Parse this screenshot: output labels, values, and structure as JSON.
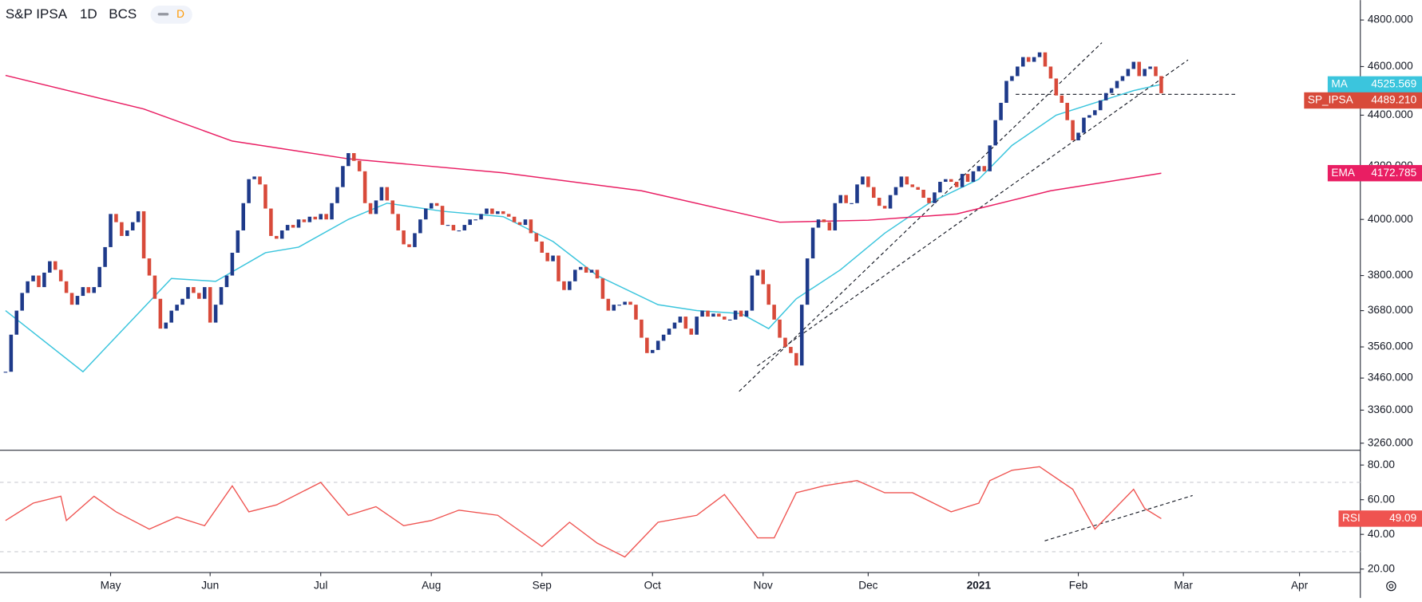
{
  "header": {
    "symbol": "S&P IPSA",
    "interval": "1D",
    "exchange": "BCS",
    "badge": "D"
  },
  "chart_data": [
    {
      "type": "candlestick",
      "name": "SP_IPSA",
      "value_label": "4489.210",
      "up_color": "#1e3a8a",
      "down_color": "#d84a3a",
      "log_scale": true,
      "xlim": [
        -1,
        245
      ],
      "xticks": [
        {
          "value": 19,
          "label": "May"
        },
        {
          "value": 37,
          "label": "Jun"
        },
        {
          "value": 57,
          "label": "Jul"
        },
        {
          "value": 77,
          "label": "Aug"
        },
        {
          "value": 97,
          "label": "Sep"
        },
        {
          "value": 117,
          "label": "Oct"
        },
        {
          "value": 137,
          "label": "Nov"
        },
        {
          "value": 156,
          "label": "Dec"
        },
        {
          "value": 176,
          "label": "2021"
        },
        {
          "value": 194,
          "label": "Feb"
        },
        {
          "value": 213,
          "label": "Mar"
        },
        {
          "value": 234,
          "label": "Apr"
        }
      ],
      "ylim": [
        3239,
        4888
      ],
      "yticks": [
        {
          "value": 3260,
          "label": "3260.000"
        },
        {
          "value": 3360,
          "label": "3360.000"
        },
        {
          "value": 3460,
          "label": "3460.000"
        },
        {
          "value": 3560,
          "label": "3560.000"
        },
        {
          "value": 3680,
          "label": "3680.000"
        },
        {
          "value": 3800,
          "label": "3800.000"
        },
        {
          "value": 4000,
          "label": "4000.000"
        },
        {
          "value": 4200,
          "label": "4200.000"
        },
        {
          "value": 4400,
          "label": "4400.000"
        },
        {
          "value": 4600,
          "label": "4600.000"
        },
        {
          "value": 4800,
          "label": "4800.000"
        }
      ],
      "values": [
        3480,
        3600,
        3680,
        3740,
        3780,
        3800,
        3760,
        3810,
        3850,
        3820,
        3780,
        3740,
        3700,
        3730,
        3760,
        3740,
        3760,
        3830,
        3900,
        4020,
        3990,
        3940,
        3960,
        3990,
        4030,
        3860,
        3800,
        3720,
        3620,
        3640,
        3680,
        3700,
        3720,
        3760,
        3740,
        3720,
        3760,
        3640,
        3700,
        3760,
        3800,
        3880,
        3960,
        4060,
        4150,
        4160,
        4130,
        4040,
        3940,
        3930,
        3960,
        3980,
        3970,
        4000,
        3990,
        4010,
        4000,
        4020,
        4000,
        4060,
        4120,
        4200,
        4250,
        4220,
        4180,
        4060,
        4020,
        4070,
        4120,
        4070,
        4020,
        3960,
        3910,
        3900,
        3950,
        4000,
        4040,
        4060,
        4050,
        3980,
        3980,
        3960,
        3960,
        3980,
        4000,
        4000,
        4020,
        4040,
        4020,
        4030,
        4020,
        4010,
        3990,
        3980,
        4000,
        3950,
        3920,
        3880,
        3850,
        3870,
        3780,
        3750,
        3780,
        3820,
        3830,
        3810,
        3820,
        3790,
        3720,
        3680,
        3700,
        3700,
        3710,
        3700,
        3650,
        3590,
        3540,
        3550,
        3580,
        3600,
        3620,
        3640,
        3660,
        3620,
        3600,
        3660,
        3680,
        3660,
        3670,
        3660,
        3650,
        3650,
        3680,
        3660,
        3680,
        3800,
        3820,
        3770,
        3700,
        3650,
        3590,
        3560,
        3540,
        3500,
        3700,
        3860,
        3970,
        4000,
        3990,
        3960,
        4060,
        4090,
        4060,
        4060,
        4130,
        4160,
        4120,
        4080,
        4050,
        4040,
        4090,
        4120,
        4160,
        4130,
        4120,
        4110,
        4080,
        4060,
        4100,
        4140,
        4150,
        4140,
        4120,
        4170,
        4140,
        4180,
        4200,
        4180,
        4280,
        4380,
        4450,
        4540,
        4560,
        4600,
        4640,
        4620,
        4640,
        4660,
        4600,
        4550,
        4480,
        4450,
        4380,
        4300,
        4330,
        4390,
        4400,
        4420,
        4460,
        4490,
        4510,
        4540,
        4560,
        4590,
        4620,
        4560,
        4590,
        4600,
        4560,
        4489.21
      ],
      "series": [
        {
          "name": "MA",
          "color": "#3bc5dd",
          "x": [
            0,
            14,
            30,
            38,
            47,
            53,
            62,
            69,
            79,
            90,
            99,
            107,
            118,
            125,
            133,
            138,
            143,
            151,
            159,
            167,
            176,
            182,
            190,
            197,
            204,
            209
          ],
          "values": [
            3680,
            3480,
            3790,
            3780,
            3880,
            3900,
            4000,
            4060,
            4030,
            4010,
            3920,
            3800,
            3700,
            3680,
            3670,
            3620,
            3720,
            3820,
            3950,
            4060,
            4150,
            4280,
            4400,
            4450,
            4500,
            4525.569
          ]
        },
        {
          "name": "EMA",
          "color": "#e91e63",
          "x": [
            0,
            25,
            41,
            62,
            90,
            115,
            140,
            156,
            172,
            189,
            209
          ],
          "values": [
            4563,
            4425,
            4297,
            4228,
            4174,
            4106,
            3990,
            3997,
            4020,
            4106,
            4172.785
          ]
        }
      ]
    },
    {
      "type": "line",
      "name": "RSI",
      "color": "#ef5350",
      "ylim": [
        18,
        88
      ],
      "yticks": [
        {
          "value": 20,
          "label": "20.00"
        },
        {
          "value": 40,
          "label": "40.00"
        },
        {
          "value": 60,
          "label": "60.00"
        },
        {
          "value": 80,
          "label": "80.00"
        }
      ],
      "bands": [
        30,
        70
      ],
      "x": [
        0,
        5,
        10,
        11,
        16,
        20,
        26,
        31,
        36,
        41,
        44,
        49,
        57,
        62,
        67,
        72,
        77,
        82,
        89,
        97,
        102,
        107,
        112,
        118,
        125,
        130,
        136,
        139,
        143,
        148,
        154,
        159,
        164,
        171,
        176,
        178,
        182,
        187,
        193,
        197,
        204,
        206,
        209
      ],
      "values": [
        48,
        58,
        62,
        48,
        62,
        53,
        43,
        50,
        45,
        68,
        53,
        57,
        70,
        51,
        56,
        45,
        48,
        54,
        51,
        33,
        47,
        35,
        27,
        47,
        51,
        63,
        38,
        38,
        64,
        68,
        71,
        64,
        64,
        53,
        58,
        71,
        77,
        79,
        66,
        43,
        66,
        55,
        49.09
      ]
    }
  ]
}
